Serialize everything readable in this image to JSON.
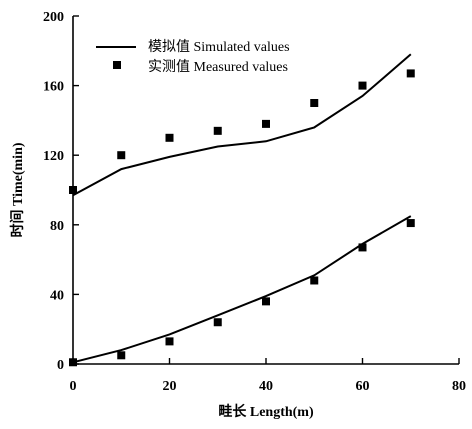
{
  "chart_data": {
    "type": "line",
    "xlabel": "畦长 Length(m)",
    "ylabel": "时间 Time(min)",
    "xlim": [
      0,
      80
    ],
    "ylim": [
      0,
      200
    ],
    "x_ticks": [
      "0",
      "20",
      "40",
      "60",
      "80"
    ],
    "y_ticks": [
      "0",
      "40",
      "80",
      "120",
      "160",
      "200"
    ],
    "legend_position": "top-left",
    "grid": false,
    "series": [
      {
        "name": "模拟值 Simulated values",
        "style": "line",
        "color": "#000000",
        "x": [
          0,
          10,
          20,
          30,
          40,
          50,
          60,
          70
        ],
        "y": [
          97,
          112,
          119,
          125,
          128,
          136,
          154,
          178
        ]
      },
      {
        "name": "模拟值 Simulated values",
        "style": "line",
        "color": "#000000",
        "x": [
          0,
          10,
          20,
          30,
          40,
          50,
          60,
          70
        ],
        "y": [
          1,
          8,
          17,
          28,
          39,
          51,
          69,
          85
        ]
      },
      {
        "name": "实测值 Measured values",
        "style": "marker",
        "color": "#000000",
        "x": [
          0,
          10,
          20,
          30,
          40,
          50,
          60,
          70
        ],
        "y": [
          100,
          120,
          130,
          134,
          138,
          150,
          160,
          167
        ]
      },
      {
        "name": "实测值 Measured values",
        "style": "marker",
        "color": "#000000",
        "x": [
          0,
          10,
          20,
          30,
          40,
          50,
          60,
          70
        ],
        "y": [
          1,
          5,
          13,
          24,
          36,
          48,
          67,
          81
        ]
      }
    ],
    "legend": [
      {
        "label": "模拟值 Simulated values",
        "style": "line"
      },
      {
        "label": "实测值 Measured values",
        "style": "marker"
      }
    ]
  }
}
